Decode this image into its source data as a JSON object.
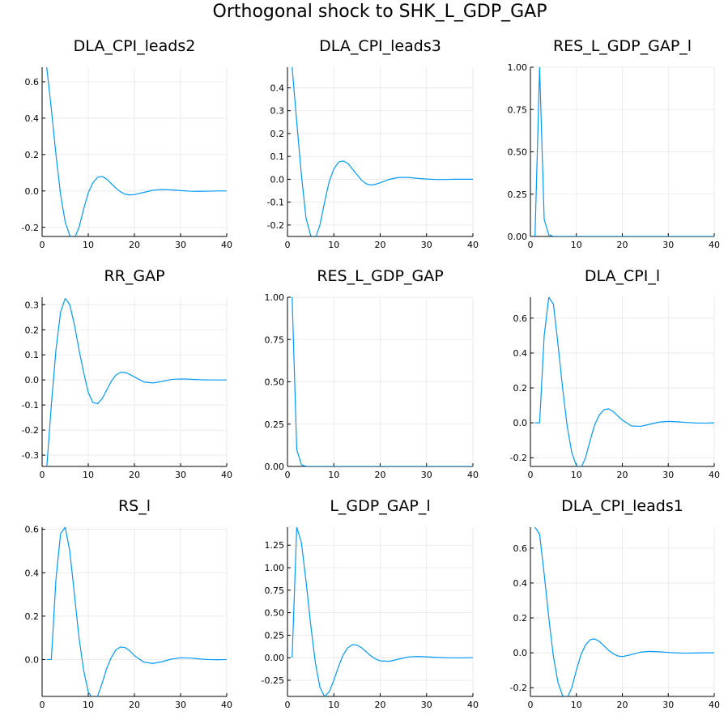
{
  "title": "Orthogonal shock to SHK_L_GDP_GAP",
  "colors": {
    "series": "#009af9",
    "grid": "#e6e6e6",
    "axis": "#000000"
  },
  "chart_data": [
    {
      "type": "line",
      "title": "DLA_CPI_leads2",
      "xlim": [
        0,
        40
      ],
      "ylim": [
        -0.25,
        0.68
      ],
      "xticks": [
        0,
        10,
        20,
        30,
        40
      ],
      "yticks": [
        -0.2,
        0,
        0.2,
        0.4,
        0.6
      ],
      "ytick_labels": [
        "-0.2",
        "0.0",
        "0.2",
        "0.4",
        "0.6"
      ],
      "x": [
        1,
        2,
        3,
        4,
        5,
        6,
        7,
        8,
        9,
        10,
        11,
        12,
        13,
        14,
        15,
        16,
        17,
        18,
        19,
        20,
        22,
        24,
        26,
        28,
        30,
        32,
        34,
        36,
        38,
        40
      ],
      "y": [
        0.68,
        0.45,
        0.2,
        -0.02,
        -0.17,
        -0.245,
        -0.26,
        -0.2,
        -0.1,
        -0.01,
        0.045,
        0.075,
        0.08,
        0.065,
        0.04,
        0.015,
        -0.005,
        -0.018,
        -0.022,
        -0.02,
        -0.008,
        0.004,
        0.008,
        0.006,
        0.002,
        -0.001,
        -0.002,
        -0.001,
        0,
        0
      ]
    },
    {
      "type": "line",
      "title": "DLA_CPI_leads3",
      "xlim": [
        0,
        40
      ],
      "ylim": [
        -0.25,
        0.49
      ],
      "xticks": [
        0,
        10,
        20,
        30,
        40
      ],
      "yticks": [
        -0.2,
        -0.1,
        0,
        0.1,
        0.2,
        0.3,
        0.4
      ],
      "ytick_labels": [
        "-0.2",
        "-0.1",
        "0.0",
        "0.1",
        "0.2",
        "0.3",
        "0.4"
      ],
      "x": [
        1,
        2,
        3,
        4,
        5,
        6,
        7,
        8,
        9,
        10,
        11,
        12,
        13,
        14,
        15,
        16,
        17,
        18,
        19,
        20,
        22,
        24,
        26,
        28,
        30,
        32,
        34,
        36,
        38,
        40
      ],
      "y": [
        0.49,
        0.25,
        0.02,
        -0.17,
        -0.245,
        -0.26,
        -0.2,
        -0.1,
        -0.01,
        0.045,
        0.075,
        0.08,
        0.07,
        0.045,
        0.02,
        -0.005,
        -0.02,
        -0.025,
        -0.022,
        -0.015,
        0,
        0.008,
        0.008,
        0.004,
        0.001,
        -0.001,
        -0.001,
        0,
        0,
        0
      ]
    },
    {
      "type": "line",
      "title": "RES_L_GDP_GAP_l",
      "xlim": [
        0,
        40
      ],
      "ylim": [
        0,
        1.0
      ],
      "xticks": [
        0,
        10,
        20,
        30,
        40
      ],
      "yticks": [
        0,
        0.25,
        0.5,
        0.75,
        1.0
      ],
      "ytick_labels": [
        "0.00",
        "0.25",
        "0.50",
        "0.75",
        "1.00"
      ],
      "x": [
        1,
        2,
        3,
        4,
        5,
        6,
        10,
        20,
        30,
        40
      ],
      "y": [
        0,
        1.0,
        0.1,
        0.01,
        0.001,
        0,
        0,
        0,
        0,
        0
      ]
    },
    {
      "type": "line",
      "title": "RR_GAP",
      "xlim": [
        0,
        40
      ],
      "ylim": [
        -0.345,
        0.33
      ],
      "xticks": [
        0,
        10,
        20,
        30,
        40
      ],
      "yticks": [
        -0.3,
        -0.2,
        -0.1,
        0,
        0.1,
        0.2,
        0.3
      ],
      "ytick_labels": [
        "-0.3",
        "-0.2",
        "-0.1",
        "0.0",
        "0.1",
        "0.2",
        "0.3"
      ],
      "x": [
        1,
        2,
        3,
        4,
        5,
        6,
        7,
        8,
        9,
        10,
        11,
        12,
        13,
        14,
        15,
        16,
        17,
        18,
        19,
        20,
        22,
        24,
        26,
        28,
        30,
        32,
        34,
        36,
        38,
        40
      ],
      "y": [
        -0.35,
        -0.1,
        0.12,
        0.27,
        0.325,
        0.3,
        0.22,
        0.12,
        0.03,
        -0.05,
        -0.09,
        -0.095,
        -0.075,
        -0.04,
        -0.005,
        0.02,
        0.03,
        0.03,
        0.022,
        0.012,
        -0.008,
        -0.012,
        -0.006,
        0.002,
        0.004,
        0.003,
        0.001,
        0,
        0,
        0
      ]
    },
    {
      "type": "line",
      "title": "RES_L_GDP_GAP",
      "xlim": [
        0,
        40
      ],
      "ylim": [
        0,
        1.0
      ],
      "xticks": [
        0,
        10,
        20,
        30,
        40
      ],
      "yticks": [
        0,
        0.25,
        0.5,
        0.75,
        1.0
      ],
      "ytick_labels": [
        "0.00",
        "0.25",
        "0.50",
        "0.75",
        "1.00"
      ],
      "x": [
        1,
        2,
        3,
        4,
        5,
        10,
        20,
        30,
        40
      ],
      "y": [
        1.0,
        0.1,
        0.01,
        0.001,
        0,
        0,
        0,
        0,
        0
      ]
    },
    {
      "type": "line",
      "title": "DLA_CPI_l",
      "xlim": [
        0,
        40
      ],
      "ylim": [
        -0.25,
        0.72
      ],
      "xticks": [
        0,
        10,
        20,
        30,
        40
      ],
      "yticks": [
        -0.2,
        0,
        0.2,
        0.4,
        0.6
      ],
      "ytick_labels": [
        "-0.2",
        "0.0",
        "0.2",
        "0.4",
        "0.6"
      ],
      "x": [
        1,
        2,
        3,
        4,
        5,
        6,
        7,
        8,
        9,
        10,
        11,
        12,
        13,
        14,
        15,
        16,
        17,
        18,
        19,
        20,
        22,
        24,
        26,
        28,
        30,
        32,
        34,
        36,
        38,
        40
      ],
      "y": [
        0,
        0,
        0.5,
        0.72,
        0.68,
        0.45,
        0.2,
        -0.02,
        -0.17,
        -0.245,
        -0.26,
        -0.2,
        -0.1,
        -0.01,
        0.045,
        0.075,
        0.08,
        0.065,
        0.04,
        0.015,
        -0.018,
        -0.02,
        -0.008,
        0.004,
        0.008,
        0.006,
        0.002,
        -0.001,
        -0.002,
        0
      ]
    },
    {
      "type": "line",
      "title": "RS_l",
      "xlim": [
        0,
        40
      ],
      "ylim": [
        -0.17,
        0.61
      ],
      "xticks": [
        0,
        10,
        20,
        30,
        40
      ],
      "yticks": [
        0,
        0.2,
        0.4,
        0.6
      ],
      "ytick_labels": [
        "0.0",
        "0.2",
        "0.4",
        "0.6"
      ],
      "x": [
        1,
        2,
        3,
        4,
        5,
        6,
        7,
        8,
        9,
        10,
        11,
        12,
        13,
        14,
        15,
        16,
        17,
        18,
        19,
        20,
        22,
        24,
        26,
        28,
        30,
        32,
        34,
        36,
        38,
        40
      ],
      "y": [
        0,
        0,
        0.37,
        0.58,
        0.61,
        0.5,
        0.3,
        0.1,
        -0.05,
        -0.15,
        -0.18,
        -0.17,
        -0.11,
        -0.04,
        0.01,
        0.045,
        0.058,
        0.055,
        0.04,
        0.018,
        -0.012,
        -0.018,
        -0.01,
        0.002,
        0.008,
        0.007,
        0.003,
        0,
        -0.001,
        0
      ]
    },
    {
      "type": "line",
      "title": "L_GDP_GAP_l",
      "xlim": [
        0,
        40
      ],
      "ylim": [
        -0.43,
        1.45
      ],
      "xticks": [
        0,
        10,
        20,
        30,
        40
      ],
      "yticks": [
        -0.25,
        0,
        0.25,
        0.5,
        0.75,
        1.0,
        1.25
      ],
      "ytick_labels": [
        "-0.25",
        "0.00",
        "0.25",
        "0.50",
        "0.75",
        "1.00",
        "1.25"
      ],
      "x": [
        1,
        2,
        3,
        4,
        5,
        6,
        7,
        8,
        9,
        10,
        11,
        12,
        13,
        14,
        15,
        16,
        17,
        18,
        19,
        20,
        22,
        24,
        26,
        28,
        30,
        32,
        34,
        36,
        38,
        40
      ],
      "y": [
        0,
        1.45,
        1.28,
        0.85,
        0.37,
        -0.05,
        -0.33,
        -0.43,
        -0.38,
        -0.25,
        -0.1,
        0.03,
        0.11,
        0.145,
        0.14,
        0.11,
        0.065,
        0.02,
        -0.015,
        -0.035,
        -0.04,
        -0.015,
        0.008,
        0.014,
        0.01,
        0.004,
        0,
        -0.002,
        -0.001,
        0
      ]
    },
    {
      "type": "line",
      "title": "DLA_CPI_leads1",
      "xlim": [
        0,
        40
      ],
      "ylim": [
        -0.25,
        0.72
      ],
      "xticks": [
        0,
        10,
        20,
        30,
        40
      ],
      "yticks": [
        -0.2,
        0,
        0.2,
        0.4,
        0.6
      ],
      "ytick_labels": [
        "-0.2",
        "0.0",
        "0.2",
        "0.4",
        "0.6"
      ],
      "x": [
        1,
        2,
        3,
        4,
        5,
        6,
        7,
        8,
        9,
        10,
        11,
        12,
        13,
        14,
        15,
        16,
        17,
        18,
        19,
        20,
        22,
        24,
        26,
        28,
        30,
        32,
        34,
        36,
        38,
        40
      ],
      "y": [
        0.72,
        0.68,
        0.45,
        0.2,
        -0.02,
        -0.17,
        -0.245,
        -0.26,
        -0.2,
        -0.1,
        -0.01,
        0.045,
        0.075,
        0.08,
        0.065,
        0.04,
        0.015,
        -0.005,
        -0.018,
        -0.022,
        -0.01,
        0.004,
        0.008,
        0.006,
        0.002,
        -0.001,
        -0.002,
        -0.001,
        0,
        0
      ]
    }
  ]
}
